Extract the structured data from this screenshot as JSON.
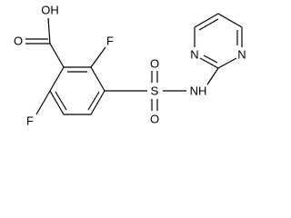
{
  "atoms": [
    "OH",
    "O",
    "F",
    "F",
    "S",
    "O",
    "O",
    "NH",
    "N",
    "N"
  ]
}
